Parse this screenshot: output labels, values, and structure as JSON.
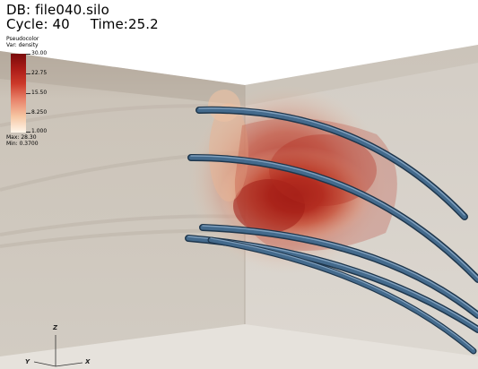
{
  "header": {
    "db_label": "DB:",
    "db_file": "file040.silo",
    "cycle_label": "Cycle:",
    "cycle_value": "40",
    "time_label": "Time:25.2"
  },
  "legend": {
    "plot_type": "Pseudocolor",
    "var_label": "Var: density",
    "ticks": [
      "30.00",
      "22.75",
      "15.50",
      "8.250",
      "1.000"
    ],
    "max_label": "Max: 28.30",
    "min_label": "Min: 0.3700",
    "colors": [
      "#7a0b0b",
      "#cc3a2a",
      "#f6c7a4",
      "#fff6ea"
    ]
  },
  "axes": {
    "z": "Z",
    "y": "Y",
    "x": "X"
  },
  "colors": {
    "left_wall": "#c9c2b8",
    "right_wall": "#d8d3cb",
    "tube": "#2f4f6b",
    "tube_highlight": "#6e8eae",
    "density_core": "#9c1714"
  }
}
